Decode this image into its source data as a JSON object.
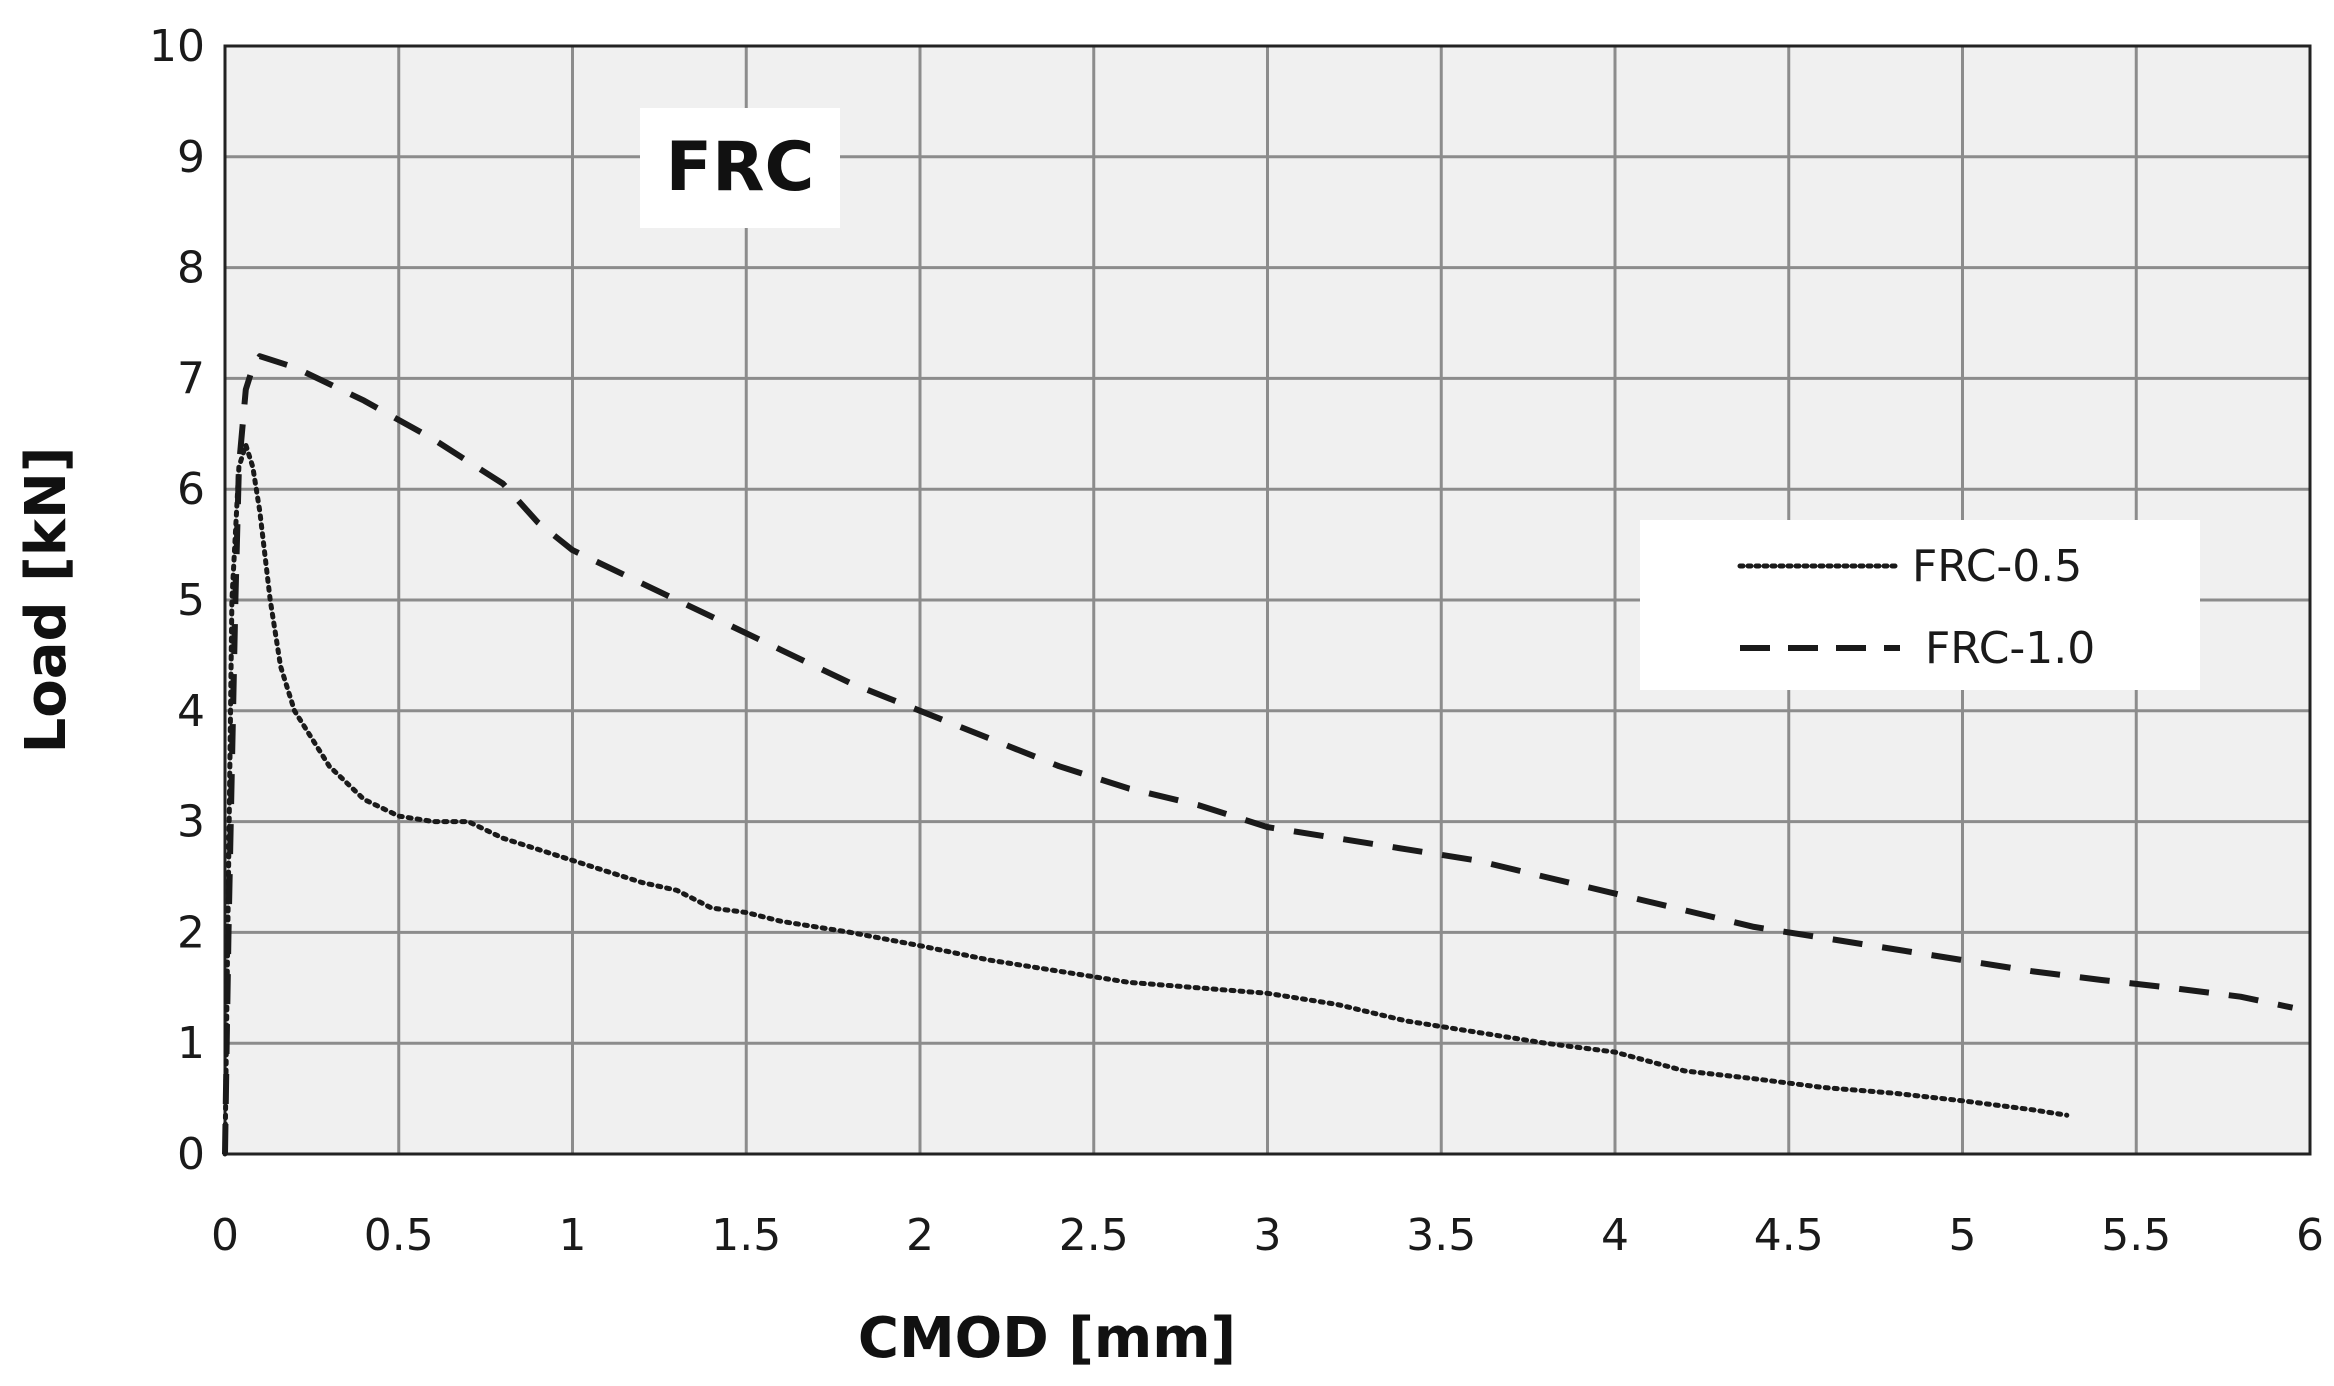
{
  "chart_data": {
    "type": "line",
    "title": "",
    "annotation": "FRC",
    "xlabel": "CMOD [mm]",
    "ylabel": "Load [kN]",
    "xlim": [
      0,
      6
    ],
    "ylim": [
      0,
      10
    ],
    "x_ticks": [
      0,
      0.5,
      1,
      1.5,
      2,
      2.5,
      3,
      3.5,
      4,
      4.5,
      5,
      5.5,
      6
    ],
    "x_tick_labels": [
      "0",
      "0.5",
      "1",
      "1.5",
      "2",
      "2.5",
      "3",
      "3.5",
      "4",
      "4.5",
      "5",
      "5.5",
      "6"
    ],
    "y_ticks": [
      0,
      1,
      2,
      3,
      4,
      5,
      6,
      7,
      8,
      9,
      10
    ],
    "y_tick_labels": [
      "0",
      "1",
      "2",
      "3",
      "4",
      "5",
      "6",
      "7",
      "8",
      "9",
      "10"
    ],
    "grid": true,
    "legend_position": "right",
    "colors": {
      "plot_background": "#f0f0f0",
      "grid": "#8c8c8c",
      "frame": "#222222",
      "series": "#1a1a1a"
    },
    "series": [
      {
        "name": "FRC-0.5",
        "style": "dotted",
        "x": [
          0,
          0.01,
          0.02,
          0.04,
          0.06,
          0.08,
          0.1,
          0.13,
          0.16,
          0.2,
          0.3,
          0.4,
          0.5,
          0.6,
          0.7,
          0.8,
          0.9,
          1.0,
          1.1,
          1.2,
          1.3,
          1.4,
          1.5,
          1.6,
          1.8,
          2.0,
          2.2,
          2.4,
          2.6,
          2.8,
          3.0,
          3.2,
          3.4,
          3.6,
          3.8,
          4.0,
          4.2,
          4.4,
          4.6,
          4.8,
          5.0,
          5.2,
          5.3
        ],
        "y": [
          0,
          2.5,
          5.0,
          6.2,
          6.4,
          6.2,
          5.8,
          5.0,
          4.4,
          4.0,
          3.5,
          3.2,
          3.05,
          3.0,
          3.0,
          2.85,
          2.75,
          2.65,
          2.55,
          2.45,
          2.38,
          2.22,
          2.18,
          2.1,
          2.0,
          1.88,
          1.75,
          1.65,
          1.55,
          1.5,
          1.45,
          1.35,
          1.2,
          1.1,
          1.0,
          0.92,
          0.75,
          0.68,
          0.6,
          0.55,
          0.48,
          0.4,
          0.35
        ]
      },
      {
        "name": "FRC-1.0",
        "style": "dashed",
        "x": [
          0,
          0.005,
          0.01,
          0.02,
          0.03,
          0.04,
          0.06,
          0.08,
          0.1,
          0.2,
          0.4,
          0.6,
          0.8,
          0.9,
          1.0,
          1.2,
          1.4,
          1.6,
          1.8,
          2.0,
          2.2,
          2.4,
          2.6,
          2.8,
          3.0,
          3.2,
          3.4,
          3.6,
          3.8,
          4.0,
          4.2,
          4.4,
          4.6,
          4.8,
          5.0,
          5.2,
          5.4,
          5.6,
          5.8,
          5.95
        ],
        "y": [
          0,
          1.0,
          2.0,
          3.5,
          5.0,
          6.2,
          6.9,
          7.1,
          7.2,
          7.1,
          6.8,
          6.45,
          6.05,
          5.7,
          5.45,
          5.15,
          4.85,
          4.55,
          4.25,
          4.0,
          3.75,
          3.5,
          3.3,
          3.15,
          2.95,
          2.85,
          2.75,
          2.65,
          2.5,
          2.35,
          2.2,
          2.05,
          1.95,
          1.85,
          1.75,
          1.65,
          1.57,
          1.5,
          1.42,
          1.32
        ]
      }
    ]
  }
}
